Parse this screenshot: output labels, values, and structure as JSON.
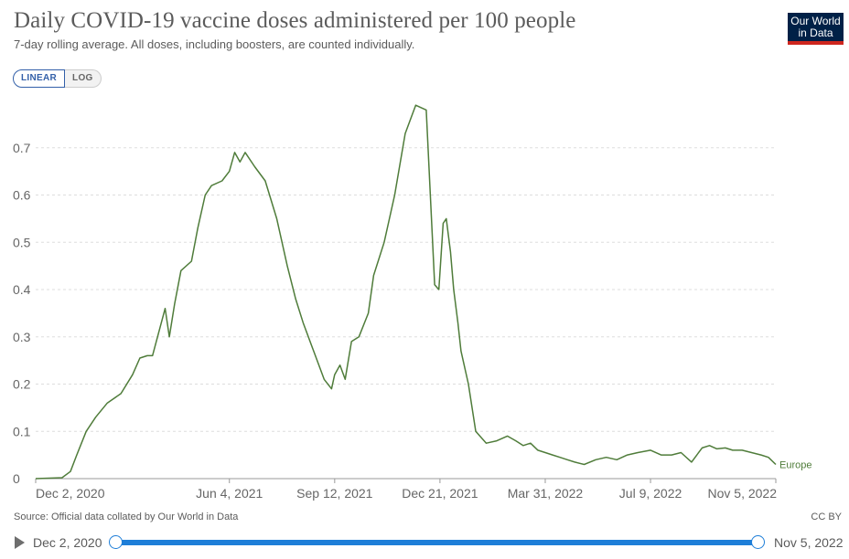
{
  "header": {
    "title": "Daily COVID-19 vaccine doses administered per 100 people",
    "subtitle": "7-day rolling average. All doses, including boosters, are counted individually.",
    "logo_line1": "Our World",
    "logo_line2": "in Data"
  },
  "controls": {
    "linear_label": "LINEAR",
    "log_label": "LOG",
    "selected_scale": "linear"
  },
  "footer": {
    "source": "Source: Official data collated by Our World in Data",
    "license": "CC BY"
  },
  "timeline": {
    "start_label": "Dec 2, 2020",
    "end_label": "Nov 5, 2022"
  },
  "colors": {
    "series": "#4f7c3a",
    "grid": "#dddddd",
    "accent": "#1e7ed8",
    "logo_bg": "#002147",
    "logo_bar": "#ce261e"
  },
  "chart_data": {
    "type": "line",
    "xlabel": "",
    "ylabel": "",
    "ylim": [
      0,
      0.8
    ],
    "yticks": [
      0,
      0.1,
      0.2,
      0.3,
      0.4,
      0.5,
      0.6,
      0.7
    ],
    "ytick_labels": [
      "0",
      "0.1",
      "0.2",
      "0.3",
      "0.4",
      "0.5",
      "0.6",
      "0.7"
    ],
    "xlim": [
      "2020-12-02",
      "2022-11-05"
    ],
    "xticks": [
      "2020-12-02",
      "2021-06-04",
      "2021-09-12",
      "2021-12-21",
      "2022-03-31",
      "2022-07-09",
      "2022-11-05"
    ],
    "xtick_labels": [
      "Dec 2, 2020",
      "Jun 4, 2021",
      "Sep 12, 2021",
      "Dec 21, 2021",
      "Mar 31, 2022",
      "Jul 9, 2022",
      "Nov 5, 2022"
    ],
    "grid": "horizontal dashed",
    "series": [
      {
        "name": "Europe",
        "color": "#4f7c3a",
        "x": [
          "2020-12-02",
          "2020-12-27",
          "2021-01-04",
          "2021-01-10",
          "2021-01-19",
          "2021-01-28",
          "2021-02-08",
          "2021-02-21",
          "2021-03-04",
          "2021-03-11",
          "2021-03-18",
          "2021-03-23",
          "2021-04-04",
          "2021-04-08",
          "2021-04-13",
          "2021-04-19",
          "2021-04-29",
          "2021-05-05",
          "2021-05-12",
          "2021-05-18",
          "2021-05-28",
          "2021-06-04",
          "2021-06-09",
          "2021-06-14",
          "2021-06-19",
          "2021-06-28",
          "2021-07-08",
          "2021-07-19",
          "2021-07-29",
          "2021-08-06",
          "2021-08-13",
          "2021-08-23",
          "2021-09-02",
          "2021-09-09",
          "2021-09-12",
          "2021-09-17",
          "2021-09-22",
          "2021-09-28",
          "2021-10-05",
          "2021-10-14",
          "2021-10-19",
          "2021-10-29",
          "2021-11-08",
          "2021-11-18",
          "2021-11-28",
          "2021-12-08",
          "2021-12-16",
          "2021-12-20",
          "2021-12-24",
          "2021-12-27",
          "2021-12-31",
          "2022-01-03",
          "2022-01-07",
          "2022-01-10",
          "2022-01-17",
          "2022-01-24",
          "2022-02-03",
          "2022-02-13",
          "2022-02-23",
          "2022-03-03",
          "2022-03-10",
          "2022-03-17",
          "2022-03-24",
          "2022-03-31",
          "2022-04-07",
          "2022-04-14",
          "2022-04-21",
          "2022-04-28",
          "2022-05-07",
          "2022-05-18",
          "2022-05-28",
          "2022-06-07",
          "2022-06-17",
          "2022-06-27",
          "2022-07-09",
          "2022-07-19",
          "2022-07-29",
          "2022-08-07",
          "2022-08-17",
          "2022-08-27",
          "2022-09-03",
          "2022-09-10",
          "2022-09-18",
          "2022-09-25",
          "2022-10-04",
          "2022-10-13",
          "2022-10-22",
          "2022-10-29",
          "2022-11-05"
        ],
        "y": [
          0,
          0.002,
          0.015,
          0.05,
          0.1,
          0.13,
          0.16,
          0.18,
          0.22,
          0.255,
          0.26,
          0.26,
          0.36,
          0.3,
          0.37,
          0.44,
          0.46,
          0.53,
          0.6,
          0.62,
          0.63,
          0.65,
          0.69,
          0.67,
          0.69,
          0.66,
          0.63,
          0.55,
          0.45,
          0.38,
          0.33,
          0.27,
          0.21,
          0.19,
          0.22,
          0.24,
          0.21,
          0.29,
          0.3,
          0.35,
          0.43,
          0.5,
          0.6,
          0.73,
          0.79,
          0.78,
          0.41,
          0.4,
          0.54,
          0.55,
          0.48,
          0.4,
          0.33,
          0.27,
          0.2,
          0.1,
          0.075,
          0.08,
          0.09,
          0.08,
          0.07,
          0.075,
          0.06,
          0.055,
          0.05,
          0.045,
          0.04,
          0.035,
          0.03,
          0.04,
          0.045,
          0.04,
          0.05,
          0.055,
          0.06,
          0.05,
          0.05,
          0.055,
          0.035,
          0.065,
          0.07,
          0.063,
          0.065,
          0.06,
          0.06,
          0.055,
          0.05,
          0.045,
          0.03
        ]
      }
    ]
  }
}
